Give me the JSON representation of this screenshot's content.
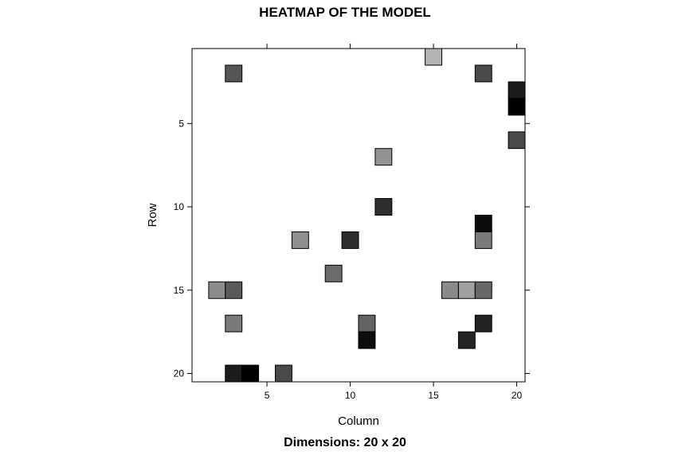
{
  "chart_data": {
    "type": "heatmap",
    "title": "HEATMAP OF THE MODEL",
    "caption": "Dimensions: 20 x 20",
    "xlabel": "Column",
    "ylabel": "Row",
    "xlim": [
      0.5,
      20.5
    ],
    "ylim": [
      0.5,
      20.5
    ],
    "y_reversed": true,
    "xticks": [
      5,
      10,
      15,
      20
    ],
    "yticks": [
      5,
      10,
      15,
      20
    ],
    "colormap": "grayscale",
    "grid": false,
    "cells": [
      {
        "row": 1,
        "col": 15,
        "color": "#b3b3b3"
      },
      {
        "row": 2,
        "col": 3,
        "color": "#555555"
      },
      {
        "row": 2,
        "col": 18,
        "color": "#4a4a4a"
      },
      {
        "row": 3,
        "col": 20,
        "color": "#1a1a1a"
      },
      {
        "row": 4,
        "col": 20,
        "color": "#000000"
      },
      {
        "row": 6,
        "col": 20,
        "color": "#4a4a4a"
      },
      {
        "row": 7,
        "col": 12,
        "color": "#939393"
      },
      {
        "row": 10,
        "col": 12,
        "color": "#2e2e2e"
      },
      {
        "row": 11,
        "col": 18,
        "color": "#0c0c0c"
      },
      {
        "row": 12,
        "col": 7,
        "color": "#8f8f8f"
      },
      {
        "row": 12,
        "col": 10,
        "color": "#2d2d2d"
      },
      {
        "row": 12,
        "col": 18,
        "color": "#7a7a7a"
      },
      {
        "row": 14,
        "col": 9,
        "color": "#6b6b6b"
      },
      {
        "row": 15,
        "col": 2,
        "color": "#8c8c8c"
      },
      {
        "row": 15,
        "col": 3,
        "color": "#5a5a5a"
      },
      {
        "row": 15,
        "col": 16,
        "color": "#8a8a8a"
      },
      {
        "row": 15,
        "col": 17,
        "color": "#a0a0a0"
      },
      {
        "row": 15,
        "col": 18,
        "color": "#686868"
      },
      {
        "row": 17,
        "col": 3,
        "color": "#7a7a7a"
      },
      {
        "row": 17,
        "col": 11,
        "color": "#636363"
      },
      {
        "row": 17,
        "col": 18,
        "color": "#222222"
      },
      {
        "row": 18,
        "col": 11,
        "color": "#0d0d0d"
      },
      {
        "row": 18,
        "col": 17,
        "color": "#232323"
      },
      {
        "row": 20,
        "col": 3,
        "color": "#1c1c1c"
      },
      {
        "row": 20,
        "col": 4,
        "color": "#000000"
      },
      {
        "row": 20,
        "col": 6,
        "color": "#4a4a4a"
      }
    ]
  }
}
